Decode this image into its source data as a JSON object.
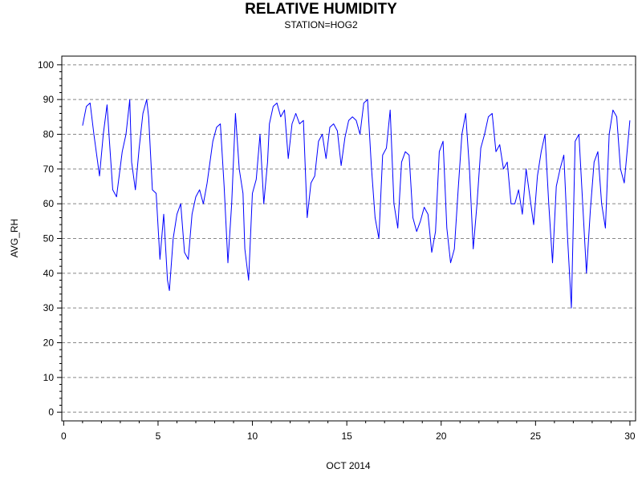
{
  "chart_data": {
    "type": "line",
    "title": "RELATIVE HUMIDITY",
    "subtitle": "STATION=HOG2",
    "xlabel": "OCT 2014",
    "ylabel": "AVG_RH",
    "xlim": [
      -0.1,
      30.3
    ],
    "ylim": [
      -2.5,
      102.5
    ],
    "x_ticks": [
      0,
      5,
      10,
      15,
      20,
      25,
      30
    ],
    "y_ticks": [
      0,
      10,
      20,
      30,
      40,
      50,
      60,
      70,
      80,
      90,
      100
    ],
    "grid": "horizontal dashed",
    "line_color": "#0000ff",
    "series": [
      {
        "x": [
          1.0,
          1.2,
          1.4,
          1.6,
          1.9,
          2.1,
          2.3,
          2.4,
          2.6,
          2.8,
          3.1,
          3.3,
          3.5,
          3.6,
          3.8,
          4.0,
          4.2,
          4.4,
          4.5,
          4.7,
          4.9,
          5.1,
          5.3,
          5.5,
          5.6,
          5.8,
          6.0,
          6.2,
          6.4,
          6.6,
          6.8,
          7.0,
          7.2,
          7.4,
          7.6,
          7.9,
          8.1,
          8.3,
          8.5,
          8.7,
          8.9,
          9.1,
          9.3,
          9.5,
          9.6,
          9.8,
          10.0,
          10.2,
          10.4,
          10.6,
          10.8,
          10.9,
          11.1,
          11.3,
          11.5,
          11.7,
          11.9,
          12.1,
          12.3,
          12.5,
          12.7,
          12.9,
          13.1,
          13.3,
          13.5,
          13.7,
          13.9,
          14.1,
          14.3,
          14.5,
          14.7,
          14.9,
          15.1,
          15.3,
          15.5,
          15.7,
          15.9,
          16.1,
          16.3,
          16.5,
          16.7,
          16.9,
          17.1,
          17.3,
          17.5,
          17.7,
          17.9,
          18.1,
          18.3,
          18.5,
          18.7,
          18.9,
          19.1,
          19.3,
          19.5,
          19.7,
          19.9,
          20.1,
          20.3,
          20.5,
          20.7,
          20.9,
          21.1,
          21.3,
          21.5,
          21.7,
          21.9,
          22.1,
          22.3,
          22.5,
          22.7,
          22.9,
          23.1,
          23.3,
          23.5,
          23.7,
          23.9,
          24.1,
          24.3,
          24.5,
          24.7,
          24.9,
          25.1,
          25.3,
          25.5,
          25.7,
          25.9,
          26.1,
          26.3,
          26.5,
          26.7,
          26.9,
          27.1,
          27.3,
          27.5,
          27.7,
          27.9,
          28.1,
          28.3,
          28.5,
          28.7,
          28.9,
          29.1,
          29.3,
          29.5,
          29.7,
          29.9,
          30.0
        ],
        "y": [
          82.5,
          88,
          89,
          80,
          68,
          80,
          88.5,
          80,
          64,
          62,
          75,
          80,
          90,
          72,
          64,
          76,
          86,
          90,
          85,
          64,
          63,
          44,
          57,
          38,
          35,
          50,
          57,
          60,
          46,
          44,
          57,
          62,
          64,
          60,
          66,
          78,
          82,
          83,
          65,
          43,
          60,
          86,
          70,
          63,
          47,
          38,
          63,
          67,
          80,
          60,
          72,
          83,
          88,
          89,
          85,
          87,
          73,
          83,
          86,
          83,
          84,
          56,
          66,
          68,
          78,
          80,
          73,
          82,
          83,
          81,
          71,
          79,
          84,
          85,
          84,
          80,
          89,
          90,
          71,
          56,
          50,
          74,
          76,
          87,
          60,
          53,
          72,
          75,
          74,
          56,
          52,
          55,
          59,
          57,
          46,
          52,
          75,
          78,
          53,
          43,
          47,
          64,
          80,
          86,
          70,
          47,
          60,
          76,
          80,
          85,
          86,
          75,
          77,
          70,
          72,
          60,
          60,
          64,
          57,
          70,
          62,
          54,
          68,
          75,
          80,
          60,
          43,
          65,
          70,
          74,
          50,
          30,
          78,
          80,
          60,
          40,
          58,
          72,
          75,
          60,
          53,
          80,
          87,
          85,
          70,
          66,
          78,
          84
        ]
      }
    ]
  }
}
